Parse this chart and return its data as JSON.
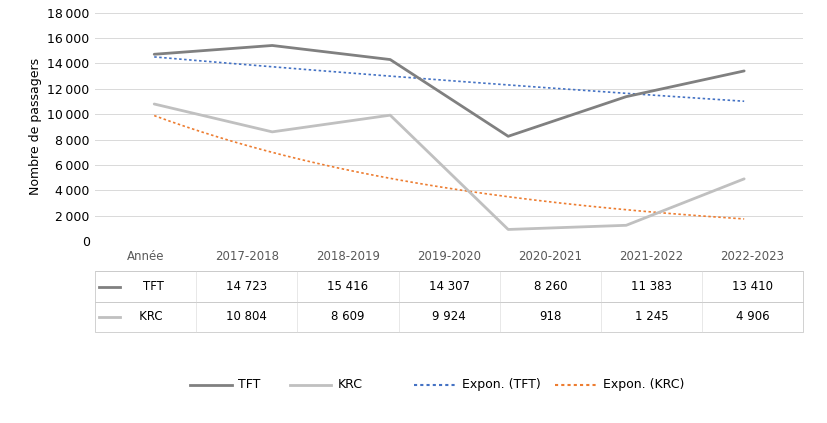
{
  "years": [
    "2017-2018",
    "2018-2019",
    "2019-2020",
    "2020-2021",
    "2021-2022",
    "2022-2023"
  ],
  "tft_values": [
    14723,
    15416,
    14307,
    8260,
    11383,
    13410
  ],
  "krc_values": [
    10804,
    8609,
    9924,
    918,
    1245,
    4906
  ],
  "tft_color": "#808080",
  "krc_color": "#c0c0c0",
  "expon_tft_color": "#4472c4",
  "expon_krc_color": "#ed7d31",
  "ylabel": "Nombre de passagers",
  "ylim": [
    0,
    18000
  ],
  "yticks": [
    0,
    2000,
    4000,
    6000,
    8000,
    10000,
    12000,
    14000,
    16000,
    18000
  ],
  "table_header": [
    "Année",
    "2017-2018",
    "2018-2019",
    "2019-2020",
    "2020-2021",
    "2021-2022",
    "2022-2023"
  ],
  "table_row_tft": [
    "14 723",
    "15 416",
    "14 307",
    "8 260",
    "11 383",
    "13 410"
  ],
  "table_row_krc": [
    "10 804",
    "8 609",
    "9 924",
    "918",
    "1 245",
    "4 906"
  ],
  "background_color": "#ffffff",
  "grid_color": "#d9d9d9",
  "border_color": "#bfbfbf",
  "figsize": [
    8.28,
    4.23
  ],
  "dpi": 100
}
